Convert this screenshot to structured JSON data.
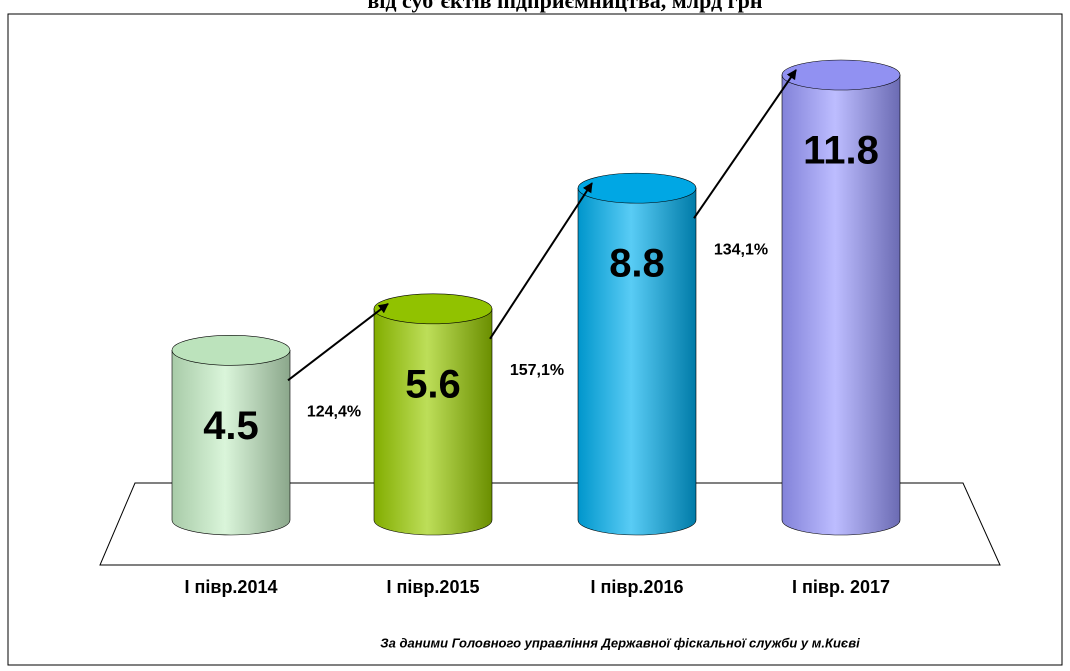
{
  "chart_data": {
    "type": "cylinder",
    "title": "від суб’єктів підприємництва, млрд грн",
    "categories": [
      "І півр.2014",
      "І півр.2015",
      "І півр.2016",
      "І півр. 2017"
    ],
    "values": [
      4.5,
      5.6,
      8.8,
      11.8
    ],
    "colors": [
      "#c6efc6",
      "#99cc00",
      "#00b0f0",
      "#9999ff"
    ],
    "annotations": [
      "124,4%",
      "157,1%",
      "134,1%"
    ],
    "source": "За даними Головного управління Державної фіскальної служби у м.Києві"
  }
}
